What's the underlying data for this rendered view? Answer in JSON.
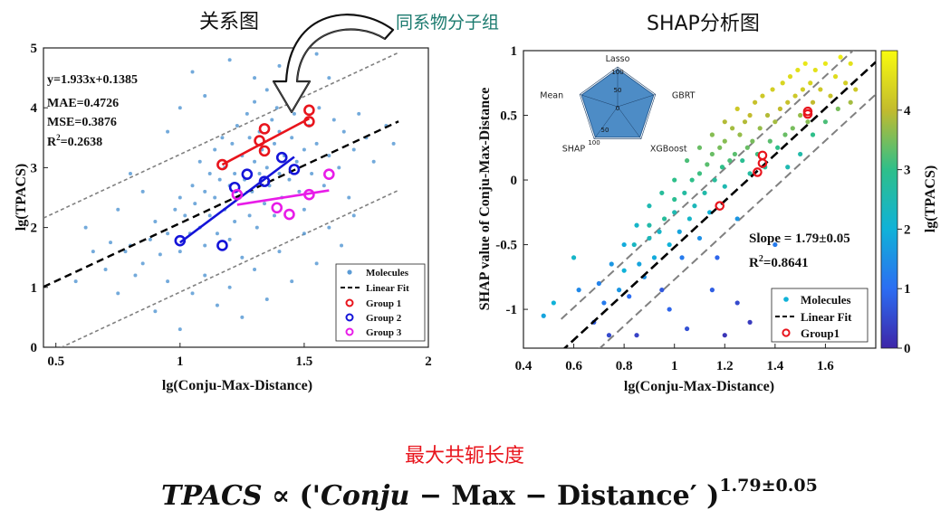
{
  "titles": {
    "left": "关系图",
    "arrow_label": "同系物分子组",
    "right": "SHAP分析图",
    "summary": "最大共轭长度"
  },
  "formula": {
    "lhs": "TPACS",
    "prop": "∝",
    "open": "('",
    "var_part1": "Conju",
    "minus": "−",
    "var_part2": "Max",
    "var_part3": "Distance",
    "close": "′ )",
    "exponent": "1.79±0.05"
  },
  "colors": {
    "molecule_left": "#5b9bd5",
    "group1": "#e8141c",
    "group2": "#1414d8",
    "group3": "#e81ce8",
    "fit": "#000000",
    "band": "#808080",
    "radar_fill": "#3a7fc0",
    "arrow_label": "#1a7a6e"
  },
  "chart_data": [
    {
      "type": "scatter",
      "id": "relation",
      "xlabel": "lg(Conju-Max-Distance)",
      "ylabel": "lg(TPACS)",
      "xlim": [
        0.45,
        2.0
      ],
      "ylim": [
        0,
        5
      ],
      "xticks": [
        0.5,
        1,
        1.5,
        2
      ],
      "xticklabels": [
        "0.5",
        "1",
        "1.5",
        "2"
      ],
      "yticks": [
        0,
        1,
        2,
        3,
        4,
        5
      ],
      "yticklabels": [
        "0",
        "1",
        "2",
        "3",
        "4",
        "5"
      ],
      "annotations": [
        "y=1.933x+0.1385",
        "MAE=0.4726",
        "MSE=0.3876",
        "R",
        "2",
        "=0.2638"
      ],
      "fit": {
        "slope": 1.933,
        "intercept": 0.1385,
        "x": [
          0.45,
          1.88
        ]
      },
      "band_offset": 1.15,
      "legend": {
        "position": "bottom-right",
        "entries": [
          "Molecules",
          "Linear Fit",
          "Group 1",
          "Group 2",
          "Group 3"
        ]
      },
      "molecules": [
        [
          0.62,
          2.0
        ],
        [
          0.65,
          1.6
        ],
        [
          0.72,
          1.75
        ],
        [
          0.78,
          1.6
        ],
        [
          0.8,
          1.7
        ],
        [
          0.85,
          1.4
        ],
        [
          0.88,
          1.8
        ],
        [
          0.9,
          2.1
        ],
        [
          0.92,
          1.55
        ],
        [
          0.95,
          1.9
        ],
        [
          0.98,
          2.3
        ],
        [
          1.0,
          2.5
        ],
        [
          1.0,
          1.6
        ],
        [
          1.02,
          2.2
        ],
        [
          1.04,
          1.9
        ],
        [
          1.05,
          2.7
        ],
        [
          1.06,
          2.4
        ],
        [
          1.08,
          3.1
        ],
        [
          1.08,
          2.0
        ],
        [
          1.1,
          2.6
        ],
        [
          1.1,
          1.7
        ],
        [
          1.12,
          2.9
        ],
        [
          1.12,
          2.2
        ],
        [
          1.14,
          3.3
        ],
        [
          1.14,
          2.5
        ],
        [
          1.15,
          1.9
        ],
        [
          1.16,
          2.8
        ],
        [
          1.17,
          3.5
        ],
        [
          1.18,
          2.3
        ],
        [
          1.18,
          3.0
        ],
        [
          1.2,
          2.7
        ],
        [
          1.2,
          1.8
        ],
        [
          1.21,
          3.4
        ],
        [
          1.22,
          2.1
        ],
        [
          1.22,
          2.9
        ],
        [
          1.23,
          3.7
        ],
        [
          1.24,
          2.5
        ],
        [
          1.25,
          3.2
        ],
        [
          1.25,
          1.5
        ],
        [
          1.26,
          2.8
        ],
        [
          1.27,
          3.9
        ],
        [
          1.28,
          2.2
        ],
        [
          1.28,
          3.5
        ],
        [
          1.29,
          2.6
        ],
        [
          1.3,
          3.1
        ],
        [
          1.3,
          4.1
        ],
        [
          1.31,
          2.0
        ],
        [
          1.32,
          2.9
        ],
        [
          1.32,
          3.6
        ],
        [
          1.33,
          3.3
        ],
        [
          1.34,
          2.4
        ],
        [
          1.35,
          4.3
        ],
        [
          1.35,
          3.0
        ],
        [
          1.36,
          2.7
        ],
        [
          1.37,
          3.8
        ],
        [
          1.38,
          2.2
        ],
        [
          1.38,
          3.4
        ],
        [
          1.39,
          4.0
        ],
        [
          1.4,
          2.9
        ],
        [
          1.4,
          3.6
        ],
        [
          1.41,
          2.5
        ],
        [
          1.42,
          3.2
        ],
        [
          1.43,
          4.2
        ],
        [
          1.44,
          2.8
        ],
        [
          1.45,
          3.5
        ],
        [
          1.46,
          3.9
        ],
        [
          1.47,
          3.1
        ],
        [
          1.48,
          2.6
        ],
        [
          1.49,
          4.4
        ],
        [
          1.5,
          3.3
        ],
        [
          1.5,
          2.3
        ],
        [
          1.52,
          3.7
        ],
        [
          1.53,
          2.9
        ],
        [
          1.55,
          3.4
        ],
        [
          1.56,
          4.0
        ],
        [
          1.58,
          2.7
        ],
        [
          1.6,
          3.2
        ],
        [
          1.62,
          3.8
        ],
        [
          1.64,
          3.0
        ],
        [
          1.66,
          3.6
        ],
        [
          1.68,
          2.5
        ],
        [
          1.7,
          3.3
        ],
        [
          1.72,
          3.9
        ],
        [
          1.75,
          3.5
        ],
        [
          1.78,
          3.1
        ],
        [
          1.83,
          3.7
        ],
        [
          1.86,
          3.4
        ],
        [
          0.58,
          1.1
        ],
        [
          0.7,
          1.3
        ],
        [
          0.75,
          0.9
        ],
        [
          0.82,
          1.2
        ],
        [
          0.9,
          0.6
        ],
        [
          0.95,
          1.1
        ],
        [
          1.0,
          0.3
        ],
        [
          1.05,
          0.9
        ],
        [
          1.1,
          1.2
        ],
        [
          1.15,
          0.7
        ],
        [
          1.2,
          1.0
        ],
        [
          1.25,
          0.5
        ],
        [
          1.3,
          1.3
        ],
        [
          1.35,
          0.8
        ],
        [
          1.4,
          1.6
        ],
        [
          1.45,
          1.1
        ],
        [
          1.5,
          1.9
        ],
        [
          1.55,
          1.4
        ],
        [
          1.6,
          2.0
        ],
        [
          1.65,
          1.7
        ],
        [
          1.7,
          2.2
        ],
        [
          1.05,
          4.6
        ],
        [
          1.2,
          4.8
        ],
        [
          1.3,
          4.5
        ],
        [
          1.4,
          4.7
        ],
        [
          1.55,
          4.9
        ],
        [
          1.6,
          4.5
        ],
        [
          0.95,
          3.6
        ],
        [
          1.0,
          4.0
        ],
        [
          1.1,
          4.2
        ],
        [
          0.85,
          2.6
        ],
        [
          0.8,
          2.9
        ],
        [
          0.75,
          2.3
        ]
      ],
      "groups": [
        {
          "label": "Group 1",
          "points": [
            [
              1.17,
              3.05
            ],
            [
              1.32,
              3.45
            ],
            [
              1.34,
              3.65
            ],
            [
              1.34,
              3.28
            ],
            [
              1.52,
              3.96
            ],
            [
              1.52,
              3.77
            ]
          ],
          "fit": [
            [
              1.17,
              3.05
            ],
            [
              1.52,
              3.82
            ]
          ]
        },
        {
          "label": "Group 2",
          "points": [
            [
              1.0,
              1.78
            ],
            [
              1.17,
              1.7
            ],
            [
              1.22,
              2.67
            ],
            [
              1.27,
              2.89
            ],
            [
              1.34,
              2.77
            ],
            [
              1.41,
              3.17
            ],
            [
              1.46,
              2.97
            ]
          ],
          "fit": [
            [
              1.0,
              1.75
            ],
            [
              1.46,
              3.18
            ]
          ]
        },
        {
          "label": "Group 3",
          "points": [
            [
              1.23,
              2.55
            ],
            [
              1.39,
              2.33
            ],
            [
              1.44,
              2.22
            ],
            [
              1.52,
              2.55
            ],
            [
              1.6,
              2.89
            ]
          ],
          "fit": [
            [
              1.23,
              2.38
            ],
            [
              1.6,
              2.62
            ]
          ]
        }
      ]
    },
    {
      "type": "scatter",
      "id": "shap",
      "xlabel": "lg(Conju-Max-Distance)",
      "ylabel": "SHAP value of Conju-Max-Distance",
      "xlim": [
        0.4,
        1.8
      ],
      "ylim": [
        -1.3,
        1.0
      ],
      "xticks": [
        0.4,
        0.6,
        0.8,
        1.0,
        1.2,
        1.4,
        1.6
      ],
      "xticklabels": [
        "0.4",
        "0.6",
        "0.8",
        "1",
        "1.2",
        "1.4",
        "1.6"
      ],
      "yticks": [
        -1,
        -0.5,
        0,
        0.5,
        1
      ],
      "yticklabels": [
        "-1",
        "-0.5",
        "0",
        "0.5",
        "1"
      ],
      "annotations": [
        "Slope = 1.79±0.05",
        "R",
        "2",
        "=0.8641"
      ],
      "fit": {
        "slope": 1.79,
        "intercept": -2.31,
        "x": [
          0.55,
          1.8
        ]
      },
      "band_offset": 0.25,
      "colorbar": {
        "label": "lg(TPACS)",
        "min": 0,
        "max": 5,
        "ticks": [
          0,
          1,
          2,
          3,
          4
        ],
        "ticklabels": [
          "0",
          "1",
          "2",
          "3",
          "4"
        ]
      },
      "legend": {
        "position": "bottom-right",
        "entries": [
          "Molecules",
          "Linear Fit",
          "Group1"
        ]
      },
      "group1": [
        [
          1.18,
          -0.2
        ],
        [
          1.33,
          0.06
        ],
        [
          1.35,
          0.13
        ],
        [
          1.35,
          0.19
        ],
        [
          1.53,
          0.51
        ],
        [
          1.53,
          0.53
        ]
      ],
      "molecules": [
        [
          0.48,
          -1.05,
          1.8
        ],
        [
          0.52,
          -0.95,
          2.0
        ],
        [
          0.6,
          -0.6,
          2.2
        ],
        [
          0.62,
          -0.85,
          1.4
        ],
        [
          0.68,
          -1.1,
          0.8
        ],
        [
          0.72,
          -0.95,
          1.2
        ],
        [
          0.74,
          -1.2,
          0.5
        ],
        [
          0.78,
          -0.85,
          1.6
        ],
        [
          0.8,
          -0.7,
          2.0
        ],
        [
          0.82,
          -0.9,
          1.0
        ],
        [
          0.84,
          -0.5,
          2.3
        ],
        [
          0.86,
          -0.65,
          1.8
        ],
        [
          0.88,
          -0.75,
          1.5
        ],
        [
          0.9,
          -0.45,
          2.4
        ],
        [
          0.9,
          -0.35,
          2.6
        ],
        [
          0.92,
          -0.6,
          1.9
        ],
        [
          0.94,
          -0.4,
          2.2
        ],
        [
          0.95,
          -0.85,
          0.7
        ],
        [
          0.96,
          -0.3,
          2.8
        ],
        [
          0.98,
          -0.5,
          2.0
        ],
        [
          1.0,
          -0.25,
          2.5
        ],
        [
          1.0,
          -0.15,
          2.9
        ],
        [
          1.02,
          -0.4,
          1.8
        ],
        [
          1.03,
          -0.6,
          1.2
        ],
        [
          1.04,
          -0.1,
          2.7
        ],
        [
          1.06,
          -0.3,
          2.2
        ],
        [
          1.07,
          0.0,
          3.0
        ],
        [
          1.08,
          -0.2,
          2.4
        ],
        [
          1.1,
          0.05,
          3.1
        ],
        [
          1.1,
          -0.45,
          1.5
        ],
        [
          1.12,
          -0.1,
          2.6
        ],
        [
          1.13,
          0.12,
          3.3
        ],
        [
          1.14,
          -0.25,
          2.0
        ],
        [
          1.15,
          0.2,
          3.4
        ],
        [
          1.16,
          0.0,
          2.8
        ],
        [
          1.17,
          -0.6,
          0.9
        ],
        [
          1.18,
          0.25,
          3.5
        ],
        [
          1.19,
          0.1,
          3.0
        ],
        [
          1.2,
          0.3,
          3.6
        ],
        [
          1.2,
          -0.05,
          2.5
        ],
        [
          1.22,
          0.15,
          3.2
        ],
        [
          1.23,
          0.4,
          3.8
        ],
        [
          1.24,
          0.2,
          3.3
        ],
        [
          1.25,
          -0.3,
          1.6
        ],
        [
          1.26,
          0.35,
          3.7
        ],
        [
          1.27,
          0.15,
          2.9
        ],
        [
          1.28,
          0.45,
          3.9
        ],
        [
          1.29,
          0.25,
          3.4
        ],
        [
          1.3,
          0.5,
          4.0
        ],
        [
          1.3,
          0.05,
          2.7
        ],
        [
          1.31,
          0.3,
          3.5
        ],
        [
          1.32,
          0.6,
          4.1
        ],
        [
          1.33,
          0.2,
          3.1
        ],
        [
          1.34,
          0.4,
          3.7
        ],
        [
          1.35,
          0.65,
          4.2
        ],
        [
          1.36,
          0.1,
          2.8
        ],
        [
          1.37,
          0.5,
          3.9
        ],
        [
          1.38,
          0.3,
          3.3
        ],
        [
          1.39,
          0.7,
          4.3
        ],
        [
          1.4,
          0.45,
          3.8
        ],
        [
          1.41,
          0.25,
          3.0
        ],
        [
          1.42,
          0.55,
          4.0
        ],
        [
          1.43,
          0.75,
          4.4
        ],
        [
          1.44,
          0.35,
          3.4
        ],
        [
          1.45,
          0.6,
          4.1
        ],
        [
          1.46,
          0.8,
          4.5
        ],
        [
          1.47,
          0.4,
          3.5
        ],
        [
          1.48,
          0.65,
          4.2
        ],
        [
          1.49,
          0.85,
          4.6
        ],
        [
          1.5,
          0.5,
          3.7
        ],
        [
          1.51,
          0.7,
          4.3
        ],
        [
          1.52,
          0.9,
          4.7
        ],
        [
          1.53,
          0.45,
          3.6
        ],
        [
          1.54,
          0.75,
          4.4
        ],
        [
          1.55,
          0.6,
          4.0
        ],
        [
          1.56,
          0.85,
          4.6
        ],
        [
          1.58,
          0.7,
          4.2
        ],
        [
          1.6,
          0.9,
          4.7
        ],
        [
          1.62,
          0.65,
          4.1
        ],
        [
          1.64,
          0.8,
          4.5
        ],
        [
          1.66,
          0.95,
          4.8
        ],
        [
          1.68,
          0.75,
          4.3
        ],
        [
          1.7,
          0.9,
          4.6
        ],
        [
          1.72,
          0.7,
          4.2
        ],
        [
          1.25,
          -0.95,
          0.5
        ],
        [
          1.3,
          -1.1,
          0.3
        ],
        [
          1.2,
          -1.2,
          0.2
        ],
        [
          0.85,
          -1.2,
          0.4
        ],
        [
          1.05,
          -1.15,
          0.6
        ],
        [
          0.98,
          -1.0,
          0.9
        ],
        [
          1.15,
          -0.85,
          0.8
        ],
        [
          1.4,
          -0.5,
          1.2
        ],
        [
          1.45,
          0.1,
          2.5
        ],
        [
          1.5,
          0.2,
          2.6
        ],
        [
          1.55,
          0.35,
          3.0
        ],
        [
          1.6,
          0.45,
          3.2
        ],
        [
          1.65,
          0.55,
          3.5
        ],
        [
          1.7,
          0.6,
          3.8
        ],
        [
          1.25,
          0.55,
          4.2
        ],
        [
          1.2,
          0.45,
          3.9
        ],
        [
          1.15,
          0.35,
          3.6
        ],
        [
          1.1,
          0.25,
          3.4
        ],
        [
          1.05,
          0.15,
          3.2
        ],
        [
          1.0,
          0.0,
          3.0
        ],
        [
          0.95,
          -0.1,
          2.8
        ],
        [
          0.9,
          -0.2,
          2.5
        ],
        [
          0.85,
          -0.35,
          2.2
        ],
        [
          0.8,
          -0.5,
          1.9
        ],
        [
          0.75,
          -0.65,
          1.6
        ],
        [
          0.7,
          -0.8,
          1.3
        ]
      ],
      "radar": {
        "axes": [
          "Lasso",
          "GBRT",
          "XGBoost",
          "SHAP",
          "Mean"
        ],
        "values": [
          95,
          95,
          95,
          95,
          95
        ],
        "max": 100,
        "ticklabels": [
          "100",
          "50",
          "0",
          "50",
          "100"
        ]
      }
    }
  ]
}
